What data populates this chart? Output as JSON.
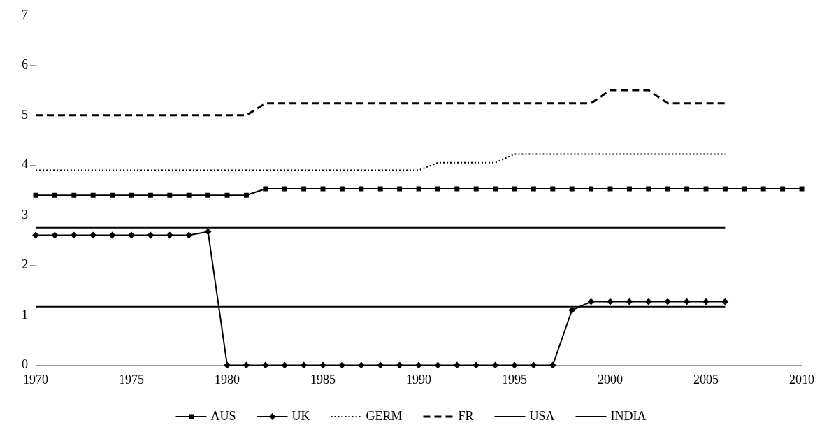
{
  "chart_data": {
    "type": "line",
    "x": [
      1970,
      1971,
      1972,
      1973,
      1974,
      1975,
      1976,
      1977,
      1978,
      1979,
      1980,
      1981,
      1982,
      1983,
      1984,
      1985,
      1986,
      1987,
      1988,
      1989,
      1990,
      1991,
      1992,
      1993,
      1994,
      1995,
      1996,
      1997,
      1998,
      1999,
      2000,
      2001,
      2002,
      2003,
      2004,
      2005,
      2006,
      2007,
      2008,
      2009,
      2010
    ],
    "series": [
      {
        "name": "AUS",
        "color": "#000000",
        "marker": "square",
        "line_style": "solid",
        "values": [
          3.4,
          3.4,
          3.4,
          3.4,
          3.4,
          3.4,
          3.4,
          3.4,
          3.4,
          3.4,
          3.4,
          3.4,
          3.53,
          3.53,
          3.53,
          3.53,
          3.53,
          3.53,
          3.53,
          3.53,
          3.53,
          3.53,
          3.53,
          3.53,
          3.53,
          3.53,
          3.53,
          3.53,
          3.53,
          3.53,
          3.53,
          3.53,
          3.53,
          3.53,
          3.53,
          3.53,
          3.53,
          3.53,
          3.53,
          3.53,
          3.53
        ]
      },
      {
        "name": "UK",
        "color": "#000000",
        "marker": "diamond",
        "line_style": "solid",
        "values": [
          2.6,
          2.6,
          2.6,
          2.6,
          2.6,
          2.6,
          2.6,
          2.6,
          2.6,
          2.67,
          0,
          0,
          0,
          0,
          0,
          0,
          0,
          0,
          0,
          0,
          0,
          0,
          0,
          0,
          0,
          0,
          0,
          0,
          1.1,
          1.27,
          1.27,
          1.27,
          1.27,
          1.27,
          1.27,
          1.27,
          1.27,
          null,
          null,
          null,
          null
        ]
      },
      {
        "name": "GERM",
        "color": "#000000",
        "marker": "none",
        "line_style": "dotted",
        "values": [
          3.9,
          3.9,
          3.9,
          3.9,
          3.9,
          3.9,
          3.9,
          3.9,
          3.9,
          3.9,
          3.9,
          3.9,
          3.9,
          3.9,
          3.9,
          3.9,
          3.9,
          3.9,
          3.9,
          3.9,
          3.9,
          4.05,
          4.05,
          4.05,
          4.05,
          4.22,
          4.22,
          4.22,
          4.22,
          4.22,
          4.22,
          4.22,
          4.22,
          4.22,
          4.22,
          4.22,
          4.22,
          null,
          null,
          null,
          null
        ]
      },
      {
        "name": "FR",
        "color": "#000000",
        "marker": "none",
        "line_style": "dashed",
        "values": [
          5,
          5,
          5,
          5,
          5,
          5,
          5,
          5,
          5,
          5,
          5,
          5,
          5.24,
          5.24,
          5.24,
          5.24,
          5.24,
          5.24,
          5.24,
          5.24,
          5.24,
          5.24,
          5.24,
          5.24,
          5.24,
          5.24,
          5.24,
          5.24,
          5.24,
          5.24,
          5.5,
          5.5,
          5.5,
          5.24,
          5.24,
          5.24,
          5.24,
          null,
          null,
          null,
          null
        ]
      },
      {
        "name": "USA",
        "color": "#000000",
        "marker": "none",
        "line_style": "solid",
        "values": [
          2.75,
          2.75,
          2.75,
          2.75,
          2.75,
          2.75,
          2.75,
          2.75,
          2.75,
          2.75,
          2.75,
          2.75,
          2.75,
          2.75,
          2.75,
          2.75,
          2.75,
          2.75,
          2.75,
          2.75,
          2.75,
          2.75,
          2.75,
          2.75,
          2.75,
          2.75,
          2.75,
          2.75,
          2.75,
          2.75,
          2.75,
          2.75,
          2.75,
          2.75,
          2.75,
          2.75,
          2.75,
          null,
          null,
          null,
          null
        ]
      },
      {
        "name": "INDIA",
        "color": "#000000",
        "marker": "none",
        "line_style": "solid",
        "values": [
          1.17,
          1.17,
          1.17,
          1.17,
          1.17,
          1.17,
          1.17,
          1.17,
          1.17,
          1.17,
          1.17,
          1.17,
          1.17,
          1.17,
          1.17,
          1.17,
          1.17,
          1.17,
          1.17,
          1.17,
          1.17,
          1.17,
          1.17,
          1.17,
          1.17,
          1.17,
          1.17,
          1.17,
          1.17,
          1.17,
          1.17,
          1.17,
          1.17,
          1.17,
          1.17,
          1.17,
          1.17,
          null,
          null,
          null,
          null
        ]
      }
    ],
    "xlim": [
      1970,
      2010
    ],
    "xticks": [
      1970,
      1975,
      1980,
      1985,
      1990,
      1995,
      2000,
      2005,
      2010
    ],
    "ylim": [
      0,
      7
    ],
    "yticks": [
      0,
      1,
      2,
      3,
      4,
      5,
      6,
      7
    ],
    "grid": false,
    "legend": "bottom"
  }
}
